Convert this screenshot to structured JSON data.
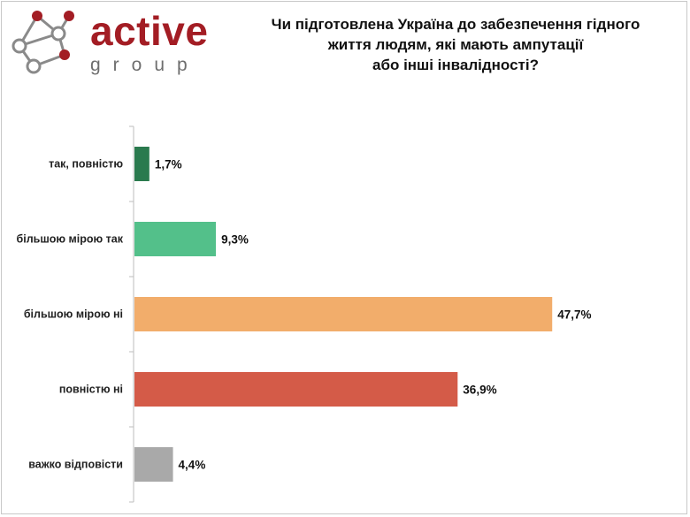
{
  "brand": {
    "name": "active",
    "sub": "group",
    "logo_icon": "network-nodes-icon",
    "colors": {
      "accent": "#a31d24",
      "muted": "#6e6e6e"
    }
  },
  "chart_data": {
    "type": "bar",
    "orientation": "horizontal",
    "title_lines": [
      "Чи підготовлена Україна до забезпечення гідного",
      "життя людям, які мають ампутації",
      "або інші інвалідності?"
    ],
    "categories": [
      "так, повністю",
      "більшою мірою так",
      "більшою мірою ні",
      "повністю ні",
      "важко відповісти"
    ],
    "values": [
      1.7,
      9.3,
      47.7,
      36.9,
      4.4
    ],
    "value_labels": [
      "1,7%",
      "9,3%",
      "47,7%",
      "36,9%",
      "4,4%"
    ],
    "colors": [
      "#2a7a4e",
      "#53c08a",
      "#f2ad6b",
      "#d45b48",
      "#a9a9a9"
    ],
    "xlim": [
      0,
      50
    ],
    "unit": "%",
    "grid": false,
    "legend": "none"
  }
}
